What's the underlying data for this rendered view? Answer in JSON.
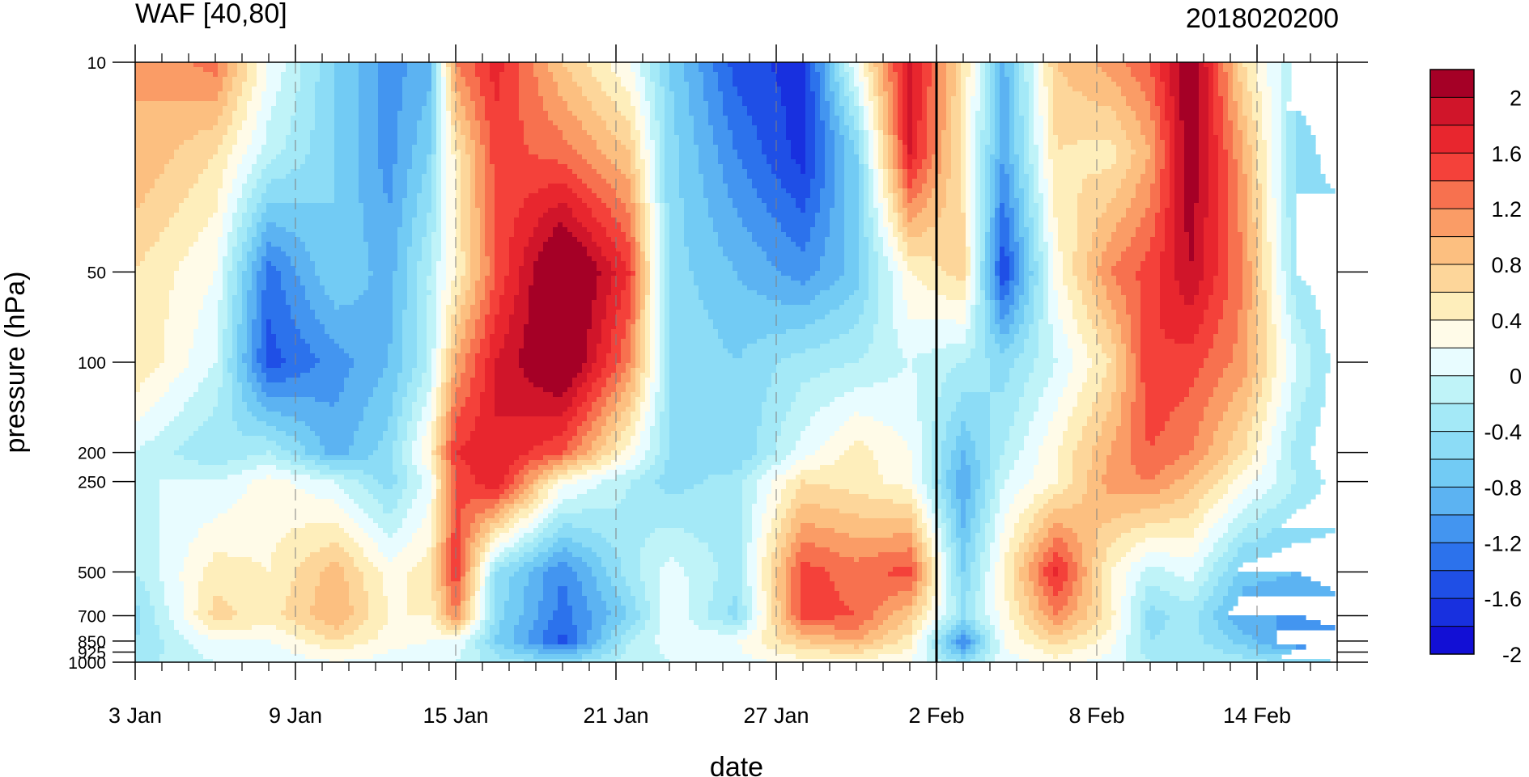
{
  "chart_data": {
    "type": "heatmap",
    "title": "WAF [40,80]",
    "subtitle": "2018020200",
    "xlabel": "date",
    "ylabel": "pressure (hPa)",
    "x_ticks": [
      "3 Jan",
      "9 Jan",
      "15 Jan",
      "21 Jan",
      "27 Jan",
      "2 Feb",
      "8 Feb",
      "14 Feb"
    ],
    "x_range": [
      "3 Jan",
      "17 Feb"
    ],
    "y_ticks": [
      10,
      50,
      100,
      200,
      250,
      500,
      700,
      850,
      925,
      1000
    ],
    "y_tick_labels": [
      "10",
      "50",
      "100",
      "200",
      "250",
      "500",
      "700",
      "850",
      "925",
      "1000"
    ],
    "ylim": [
      1000,
      10
    ],
    "y_scale": "log",
    "analysis_date_marker": "2 Feb",
    "grid": "dashed vertical at date ticks",
    "colorbar": {
      "labels": [
        "2",
        "1.6",
        "1.2",
        "0.8",
        "0.4",
        "0",
        "-0.4",
        "-0.8",
        "-1.2",
        "-1.6",
        "-2"
      ],
      "levels": [
        2.2,
        2,
        1.8,
        1.6,
        1.4,
        1.2,
        1,
        0.8,
        0.6,
        0.4,
        0.2,
        0,
        -0.2,
        -0.4,
        -0.6,
        -0.8,
        -1,
        -1.2,
        -1.4,
        -1.6,
        -1.8,
        -2,
        -2.2
      ],
      "colors": [
        "#a50026",
        "#d0152a",
        "#e8262e",
        "#f4413a",
        "#f7714f",
        "#fa9c66",
        "#fcbf80",
        "#fdd69a",
        "#feeebb",
        "#fffbe8",
        "#e8fcff",
        "#bff3f8",
        "#a4e9f7",
        "#8cdcf6",
        "#72cbf4",
        "#5cb3f2",
        "#4395f0",
        "#2c72ec",
        "#1f4fe6",
        "#1830df",
        "#120fd5"
      ]
    },
    "field": {
      "x_days_from_3_Jan": [
        0,
        3,
        5,
        7.5,
        9.5,
        11,
        12,
        13.5,
        16,
        18.5,
        20,
        22.5,
        25,
        27,
        29,
        31,
        32.5,
        34.5,
        36.5,
        38,
        39.5,
        41.5,
        43.5,
        45
      ],
      "p_hPa": [
        10,
        20,
        50,
        100,
        200,
        250,
        500,
        700,
        850,
        1000
      ],
      "values": [
        [
          1.0,
          1.3,
          0.2,
          -0.6,
          -1.1,
          -0.9,
          1.2,
          1.7,
          0.8,
          0.2,
          -0.6,
          -1.5,
          -1.7,
          0.2,
          1.9,
          0.6,
          -0.9,
          0.8,
          1.1,
          1.4,
          2.3,
          0.6,
          -0.3,
          -0.3
        ],
        [
          1.0,
          0.6,
          -0.1,
          -0.6,
          -1.1,
          -0.6,
          0.5,
          1.5,
          1.3,
          0.8,
          -0.5,
          -1.2,
          -1.7,
          -0.6,
          1.8,
          0.5,
          -1.0,
          0.6,
          0.5,
          1.0,
          2.2,
          1.0,
          -0.5,
          -0.3
        ],
        [
          0.6,
          0.2,
          -1.3,
          -0.6,
          -0.9,
          -0.2,
          0.4,
          1.4,
          2.5,
          1.6,
          -0.5,
          -0.8,
          -1.1,
          -0.7,
          0.4,
          0.7,
          -1.6,
          0.3,
          1.2,
          1.5,
          2.0,
          1.2,
          -0.4,
          -0.6
        ],
        [
          0.6,
          0.0,
          -1.5,
          -1.1,
          -0.8,
          -0.2,
          1.0,
          1.8,
          2.4,
          1.2,
          -0.4,
          -0.6,
          -0.3,
          -0.2,
          0.0,
          -0.2,
          -0.5,
          0.0,
          0.6,
          1.6,
          1.5,
          1.1,
          0.0,
          -0.5
        ],
        [
          0.0,
          -0.4,
          -0.2,
          -0.9,
          -0.5,
          0.4,
          1.6,
          1.8,
          1.4,
          0.3,
          -0.4,
          -0.6,
          0.1,
          0.5,
          0.2,
          -0.8,
          -0.2,
          0.4,
          1.0,
          1.4,
          1.2,
          0.6,
          -0.3,
          -0.6
        ],
        [
          0.0,
          0.0,
          0.3,
          0.0,
          -0.5,
          0.1,
          1.4,
          1.8,
          0.3,
          -0.2,
          -0.5,
          -0.3,
          0.6,
          0.5,
          0.3,
          -1.0,
          0.0,
          0.4,
          1.1,
          1.2,
          0.9,
          0.3,
          -0.2,
          -0.5
        ],
        [
          -0.2,
          0.5,
          0.4,
          0.9,
          0.3,
          0.5,
          1.6,
          -0.4,
          -1.2,
          -0.3,
          0.1,
          -0.3,
          1.5,
          1.3,
          1.5,
          -0.6,
          0.4,
          1.7,
          0.4,
          -0.1,
          0.1,
          -0.7,
          -0.8,
          -0.7
        ],
        [
          -0.5,
          0.7,
          0.5,
          1.0,
          0.4,
          0.4,
          1.2,
          -0.5,
          -1.3,
          -0.6,
          0.2,
          -0.5,
          1.5,
          1.4,
          0.8,
          -0.4,
          0.3,
          1.2,
          0.5,
          -0.5,
          -0.3,
          -1.0,
          -1.0,
          -0.9
        ],
        [
          -0.4,
          0.2,
          0.2,
          0.6,
          0.3,
          0.2,
          0.2,
          -0.6,
          -1.5,
          -0.2,
          0.1,
          0.2,
          0.8,
          1.0,
          0.5,
          -1.2,
          0.2,
          0.7,
          0.3,
          -0.4,
          -0.3,
          -0.7,
          -1.2,
          -1.1
        ],
        [
          -0.3,
          0.0,
          0.0,
          0.2,
          0.1,
          0.0,
          0.0,
          -0.3,
          -0.5,
          -0.1,
          0.0,
          0.1,
          0.3,
          0.3,
          0.2,
          -0.5,
          0.1,
          0.3,
          0.1,
          -0.2,
          -0.2,
          -0.3,
          -0.5,
          -0.6
        ]
      ]
    }
  }
}
